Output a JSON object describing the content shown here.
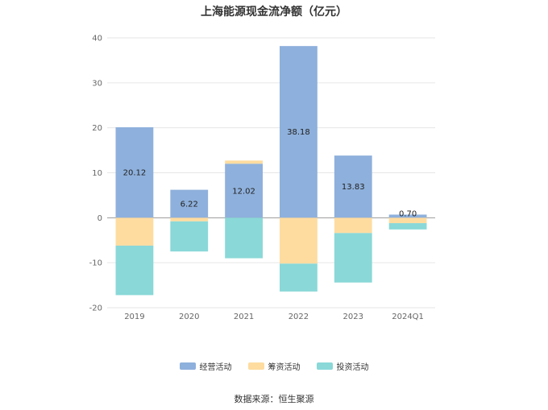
{
  "chart_data": {
    "type": "bar",
    "stacked": true,
    "title": "上海能源现金流净额（亿元）",
    "categories": [
      "2019",
      "2020",
      "2021",
      "2022",
      "2023",
      "2024Q1"
    ],
    "ylim": [
      -20,
      40
    ],
    "yticks": [
      40,
      30,
      20,
      10,
      0,
      -10,
      -20
    ],
    "grid": true,
    "legend_position": "bottom",
    "series": [
      {
        "name": "经营活动",
        "color": "#8eb0dc",
        "values": [
          20.12,
          6.22,
          12.02,
          38.18,
          13.83,
          0.7
        ],
        "show_labels": true
      },
      {
        "name": "筹资活动",
        "color": "#fedca0",
        "values": [
          -6.2,
          -0.8,
          0.7,
          -10.2,
          -3.4,
          -1.2
        ]
      },
      {
        "name": "投资活动",
        "color": "#8ad8d8",
        "values": [
          -11.0,
          -6.7,
          -9.0,
          -6.2,
          -11.0,
          -1.4
        ]
      }
    ],
    "data_labels": [
      "20.12",
      "6.22",
      "12.02",
      "38.18",
      "13.83",
      "0.70"
    ]
  },
  "footer": {
    "source": "数据来源：恒生聚源"
  }
}
